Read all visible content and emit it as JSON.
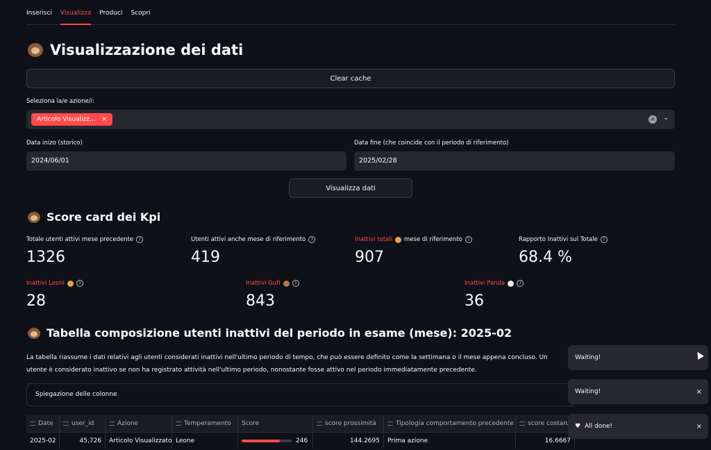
{
  "tabs": [
    {
      "label": "Inserisci",
      "active": false
    },
    {
      "label": "Visualizza",
      "active": true
    },
    {
      "label": "Produci",
      "active": false
    },
    {
      "label": "Scopri",
      "active": false
    }
  ],
  "page": {
    "title": "Visualizzazione dei dati",
    "clear_cache_label": "Clear cache"
  },
  "selector": {
    "label": "Seleziona la/e azione/i:",
    "selected_chip": "Articolo Visualizz...",
    "chip_remove": "×"
  },
  "dates": {
    "start_label": "Data inizo (storico)",
    "start_value": "2024/06/01",
    "end_label": "Data fine (che coincide con il periodo di riferimento)",
    "end_value": "2025/02/28"
  },
  "show_button_label": "Visualizza dati",
  "scorecard": {
    "heading": "Score card dei Kpi",
    "row1": [
      {
        "label": "Totale utenti attivi mese precedente",
        "value": "1326"
      },
      {
        "label": "Utenti attivi anche mese di riferimento",
        "value": "419"
      },
      {
        "label_red": "Inattivi totali",
        "label_rest": "mese di riferimento",
        "value": "907"
      },
      {
        "label": "Rapporto Inattivi sul Totale",
        "value": "68.4 %"
      }
    ],
    "row2": [
      {
        "label": "Inattivi Leoni",
        "value": "28"
      },
      {
        "label": "Inattivi Gufi",
        "value": "843"
      },
      {
        "label": "Inattivi Panda",
        "value": "36"
      }
    ],
    "help_glyph": "?"
  },
  "table_section": {
    "heading": "Tabella composizione utenti inattivi del periodo in esame (mese): 2025-02",
    "paragraph": "La tabella riassume i dati relativi agli utenti considerati inattivi nell'ultimo periodo di tempo, che può essere definito come la settimana o il mese appena concluso. Un utente è considerato inattivo se non ha registrato attività nell'ultimo periodo, nonostante fosse attivo nel periodo immediatamente precedente.",
    "expander_label": "Spiegazione delle colonne",
    "columns": [
      "Date",
      "user_id",
      "Azione",
      "Temperamento",
      "Score",
      "score prossimità",
      "Tipologia comportamento precedente",
      "score costanza"
    ],
    "rows": [
      {
        "date": "2025-02",
        "user_id": "45,726",
        "azione": "Articolo Visualizzato",
        "temperamento": "Leone",
        "score": "246",
        "score_fraction": 0.76,
        "prossimita": "144.2695",
        "tipologia": "Prima azione",
        "costanza": "16.6667"
      }
    ]
  },
  "toasts": [
    {
      "text": "Waiting!",
      "close": ""
    },
    {
      "text": "Waiting!",
      "close": "×"
    },
    {
      "text": "All done!",
      "close": "×"
    }
  ],
  "colors": {
    "accent": "#ff4b4b",
    "background": "#0e1117",
    "panel": "#262730"
  }
}
